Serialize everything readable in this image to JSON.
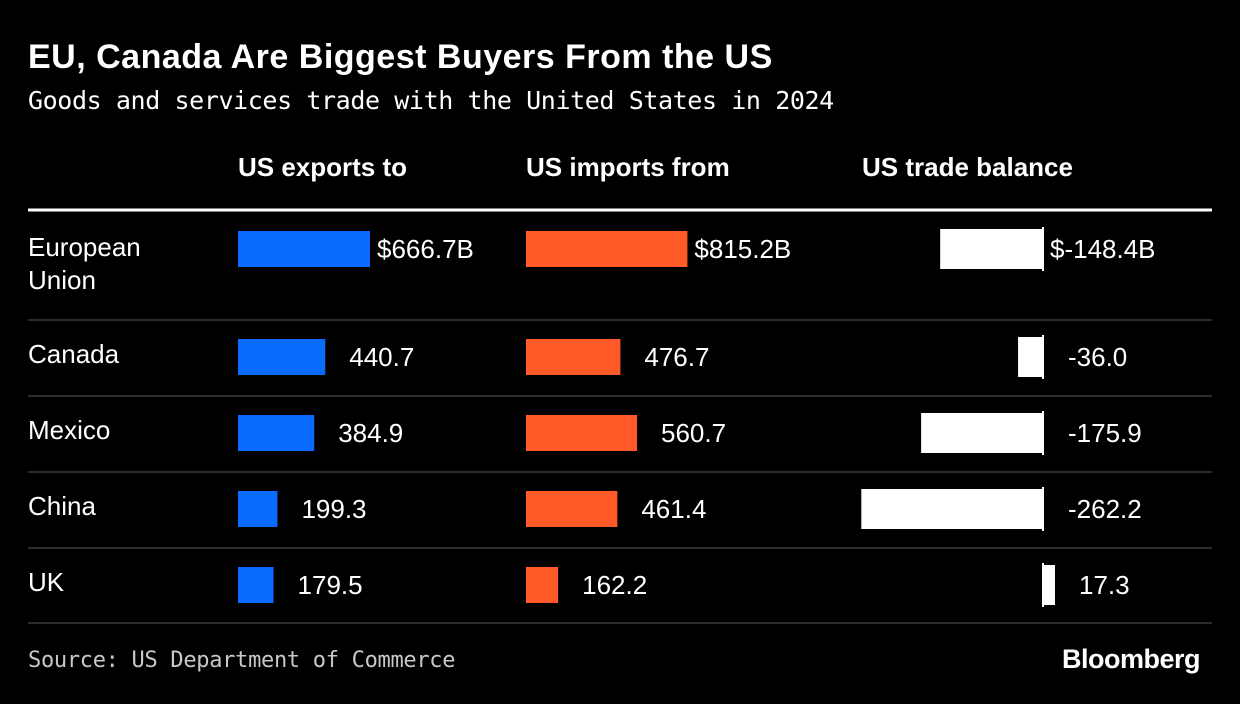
{
  "colors": {
    "exports": "#0A6CFF",
    "imports": "#FF5A28",
    "balance": "#FFFFFF",
    "background": "#000000",
    "divider": "#3a3a3a"
  },
  "title": "EU, Canada Are Biggest Buyers From the US",
  "subtitle": "Goods and services trade with the United States in 2024",
  "source": "Source: US Department of Commerce",
  "brand": "Bloomberg",
  "chart_data": {
    "type": "bar",
    "categories": [
      [
        "European",
        "Union"
      ],
      [
        "Canada"
      ],
      [
        "Mexico"
      ],
      [
        "China"
      ],
      [
        "UK"
      ]
    ],
    "series": [
      {
        "name": "US exports to",
        "values": [
          666.7,
          440.7,
          384.9,
          199.3,
          179.5
        ],
        "labels": [
          "$666.7B",
          "440.7",
          "384.9",
          "199.3",
          "179.5"
        ]
      },
      {
        "name": "US imports from",
        "values": [
          815.2,
          476.7,
          560.7,
          461.4,
          162.2
        ],
        "labels": [
          "$815.2B",
          "476.7",
          "560.7",
          "461.4",
          "162.2"
        ]
      },
      {
        "name": "US trade balance",
        "values": [
          -148.4,
          -36.0,
          -175.9,
          -262.2,
          17.3
        ],
        "labels": [
          "$-148.4B",
          "-36.0",
          "-175.9",
          "-262.2",
          "17.3"
        ]
      }
    ],
    "units": "USD billions"
  }
}
